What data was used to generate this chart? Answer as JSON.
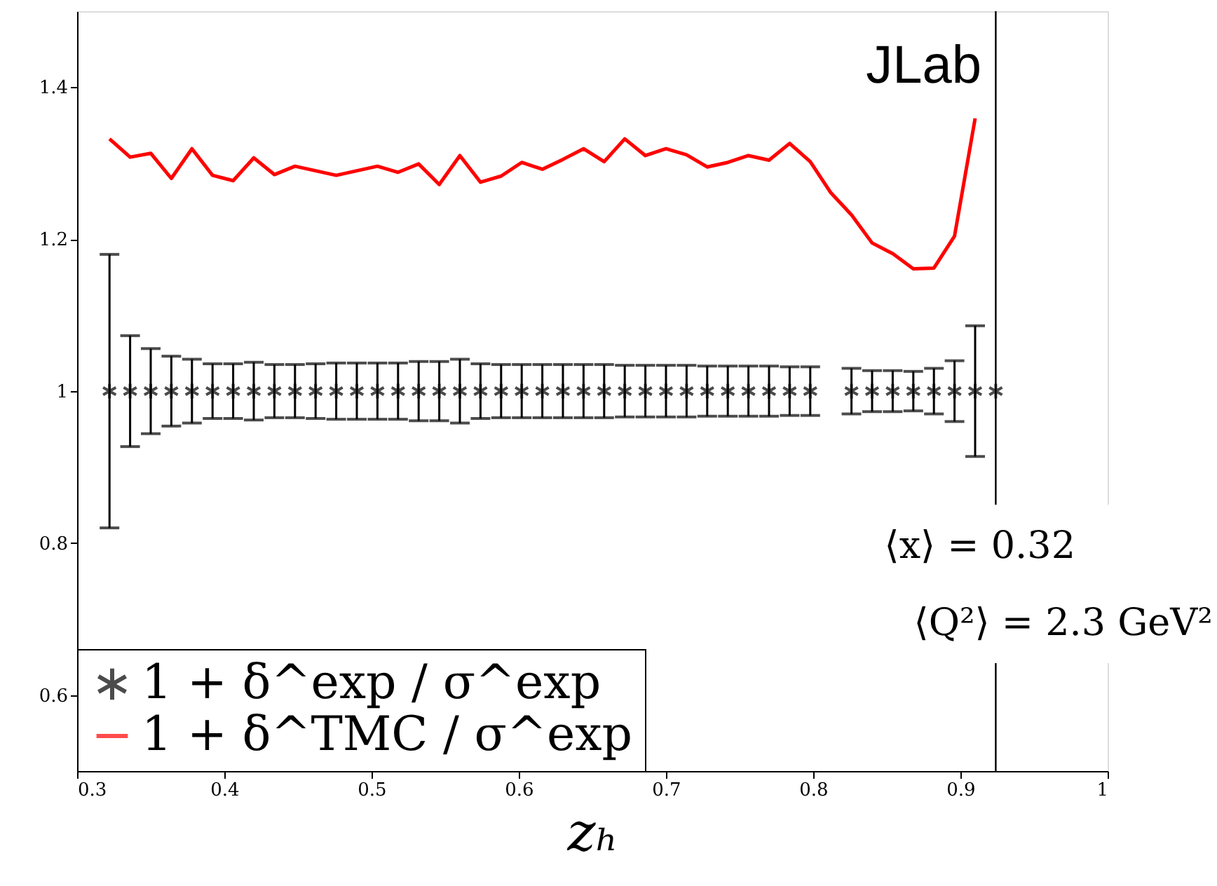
{
  "chart_data": {
    "type": "scatter",
    "xlabel": "zₕ",
    "xlim": [
      0.3,
      1
    ],
    "xticks": [
      0.3,
      0.4,
      0.5,
      0.6,
      0.7,
      0.8,
      0.9,
      1
    ],
    "ylim": [
      0.5,
      1.5
    ],
    "yticks": [
      0.6,
      0.8,
      1,
      1.2,
      1.4
    ],
    "grid": false,
    "legend": "bottom left",
    "series": [
      {
        "name": "1 + δ^exp / σ^exp",
        "marker": "cross",
        "color": "#000000",
        "x": [
          0.322,
          0.336,
          0.35,
          0.364,
          0.378,
          0.392,
          0.406,
          0.42,
          0.434,
          0.448,
          0.462,
          0.476,
          0.49,
          0.504,
          0.518,
          0.532,
          0.546,
          0.56,
          0.574,
          0.588,
          0.602,
          0.616,
          0.63,
          0.644,
          0.658,
          0.672,
          0.686,
          0.7,
          0.714,
          0.728,
          0.742,
          0.756,
          0.77,
          0.784,
          0.798,
          0.826,
          0.84,
          0.854,
          0.868,
          0.882,
          0.896,
          0.91,
          0.924
        ],
        "values": [
          1,
          1,
          1,
          1,
          1,
          1,
          1,
          1,
          1,
          1,
          1,
          1,
          1,
          1,
          1,
          1,
          1,
          1,
          1,
          1,
          1,
          1,
          1,
          1,
          1,
          1,
          1,
          1,
          1,
          1,
          1,
          1,
          1,
          1,
          1,
          1,
          1,
          1,
          1,
          1,
          1,
          1,
          1
        ],
        "errors": [
          0.18,
          0.073,
          0.056,
          0.046,
          0.042,
          0.036,
          0.036,
          0.038,
          0.035,
          0.035,
          0.036,
          0.037,
          0.037,
          0.037,
          0.037,
          0.039,
          0.039,
          0.042,
          0.036,
          0.035,
          0.035,
          0.035,
          0.035,
          0.035,
          0.035,
          0.034,
          0.034,
          0.034,
          0.034,
          0.033,
          0.033,
          0.033,
          0.033,
          0.032,
          0.032,
          0.03,
          0.027,
          0.027,
          0.026,
          0.03,
          0.04,
          0.086,
          null
        ]
      },
      {
        "name": "1 + δ^TMC / σ^exp",
        "type": "line",
        "marker": "none",
        "line_style": "solid",
        "color": "#ff0000",
        "x": [
          0.322,
          0.336,
          0.35,
          0.364,
          0.378,
          0.392,
          0.406,
          0.42,
          0.434,
          0.448,
          0.462,
          0.476,
          0.49,
          0.504,
          0.518,
          0.532,
          0.546,
          0.56,
          0.574,
          0.588,
          0.602,
          0.616,
          0.63,
          0.644,
          0.658,
          0.672,
          0.686,
          0.7,
          0.714,
          0.728,
          0.742,
          0.756,
          0.77,
          0.784,
          0.798,
          0.812,
          0.826,
          0.84,
          0.854,
          0.868,
          0.882,
          0.896,
          0.91
        ],
        "values": [
          1.332,
          1.308,
          1.313,
          1.28,
          1.319,
          1.284,
          1.277,
          1.307,
          1.285,
          1.296,
          1.29,
          1.284,
          1.29,
          1.296,
          1.288,
          1.299,
          1.272,
          1.31,
          1.275,
          1.283,
          1.301,
          1.292,
          1.305,
          1.319,
          1.302,
          1.332,
          1.31,
          1.319,
          1.311,
          1.295,
          1.301,
          1.31,
          1.304,
          1.326,
          1.302,
          1.261,
          1.232,
          1.195,
          1.181,
          1.161,
          1.162,
          1.204,
          1.359
        ]
      }
    ],
    "ref_lines": [
      {
        "axis": "x",
        "value": 0.924,
        "color": "#000000"
      }
    ],
    "annotations": [
      "JLab",
      "⟨x⟩ = 0.32",
      "⟨Q²⟩ = 2.3 GeV²"
    ]
  }
}
